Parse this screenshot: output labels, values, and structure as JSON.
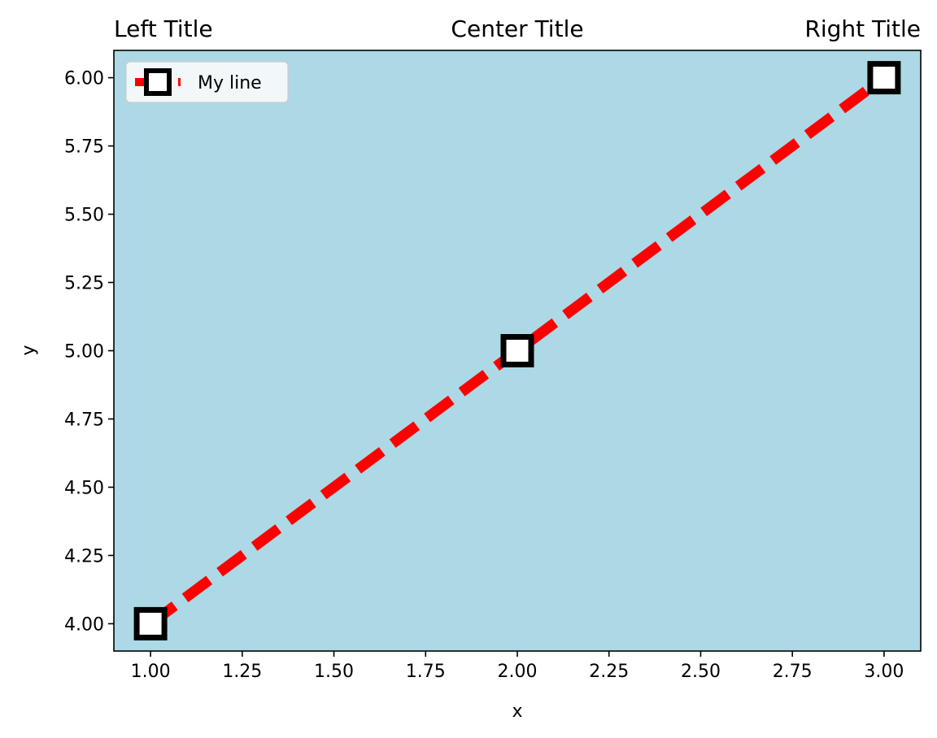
{
  "chart_data": {
    "type": "line",
    "title_left": "Left Title",
    "title_center": "Center Title",
    "title_right": "Right Title",
    "xlabel": "x",
    "ylabel": "y",
    "xlim": [
      0.9,
      3.1
    ],
    "ylim": [
      3.9,
      6.1
    ],
    "xticks": [
      "1.00",
      "1.25",
      "1.50",
      "1.75",
      "2.00",
      "2.25",
      "2.50",
      "2.75",
      "3.00"
    ],
    "yticks": [
      "4.00",
      "4.25",
      "4.50",
      "4.75",
      "5.00",
      "5.25",
      "5.50",
      "5.75",
      "6.00"
    ],
    "grid": false,
    "legend": "upper-left",
    "background_color": "#add8e6",
    "series": [
      {
        "name": "My line",
        "x": [
          1,
          2,
          3
        ],
        "y": [
          4,
          5,
          6
        ],
        "color": "#ff0000",
        "linestyle": "dashed",
        "marker": "square",
        "marker_face": "#ffffff",
        "marker_edge": "#000000"
      }
    ]
  }
}
